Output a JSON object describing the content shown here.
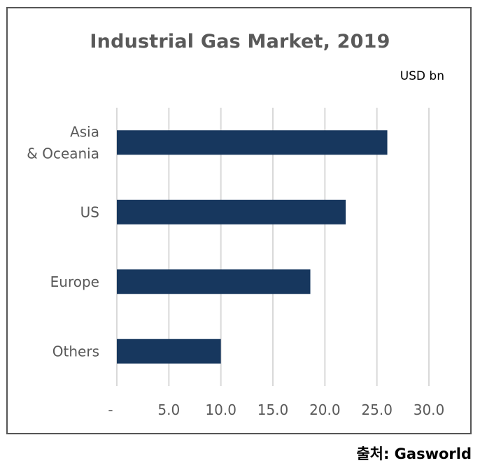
{
  "chart_data": {
    "type": "bar",
    "orientation": "horizontal",
    "title": "Industrial Gas Market, 2019",
    "unit_label": "USD bn",
    "categories": [
      [
        "Asia",
        "& Oceania"
      ],
      [
        "US"
      ],
      [
        "Europe"
      ],
      [
        "Others"
      ]
    ],
    "values": [
      26.0,
      22.0,
      18.6,
      10.0
    ],
    "xlim": [
      0,
      30
    ],
    "ticks": [
      0,
      5,
      10,
      15,
      20,
      25,
      30
    ],
    "tick_labels": [
      "-",
      "5.0",
      "10.0",
      "15.0",
      "20.0",
      "25.0",
      "30.0"
    ],
    "gridlines": true,
    "legend": "none",
    "bar_color": "#17375e",
    "grid_color": "#d9d9d9"
  },
  "source": "출처: Gasworld"
}
